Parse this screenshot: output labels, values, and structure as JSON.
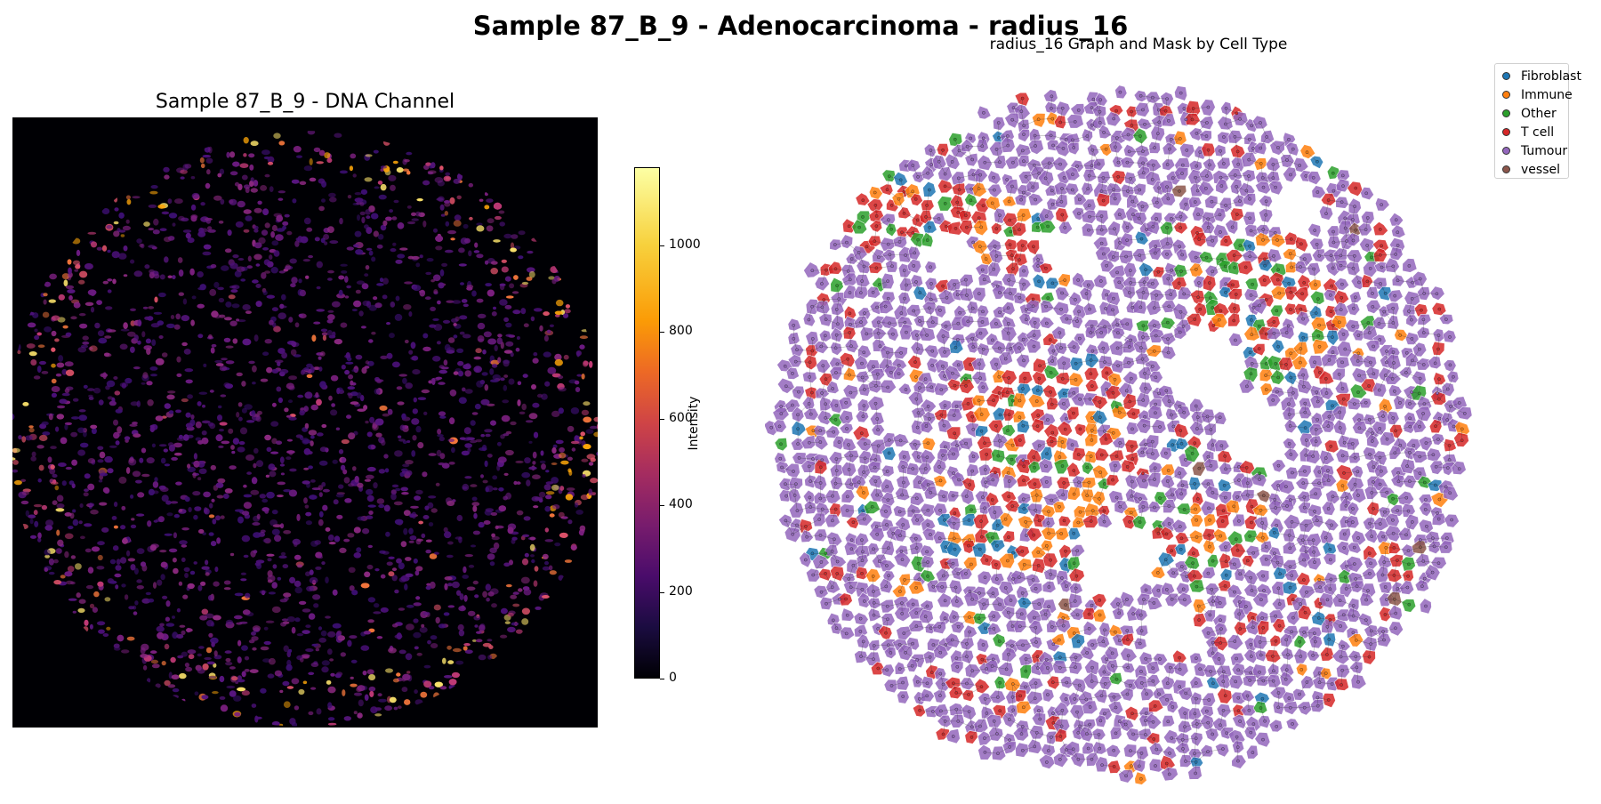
{
  "figure": {
    "suptitle": "Sample 87_B_9 - Adenocarcinoma - radius_16"
  },
  "dna_panel": {
    "title": "Sample 87_B_9 - DNA Channel",
    "colormap": "inferno",
    "colorbar": {
      "label": "Intensity",
      "vmin": 0,
      "vmax": 1180,
      "ticks": [
        {
          "value": 0,
          "label": "0"
        },
        {
          "value": 200,
          "label": "200"
        },
        {
          "value": 400,
          "label": "400"
        },
        {
          "value": 600,
          "label": "600"
        },
        {
          "value": 800,
          "label": "800"
        },
        {
          "value": 1000,
          "label": "1000"
        }
      ]
    }
  },
  "graph_panel": {
    "title": "radius_16 Graph and Mask by Cell Type",
    "legend": [
      {
        "name": "Fibroblast",
        "color": "#1f77b4"
      },
      {
        "name": "Immune",
        "color": "#ff7f0e"
      },
      {
        "name": "Other",
        "color": "#2ca02c"
      },
      {
        "name": "T cell",
        "color": "#d62728"
      },
      {
        "name": "Tumour",
        "color": "#9467bd"
      },
      {
        "name": "vessel",
        "color": "#8c564b"
      }
    ]
  }
}
